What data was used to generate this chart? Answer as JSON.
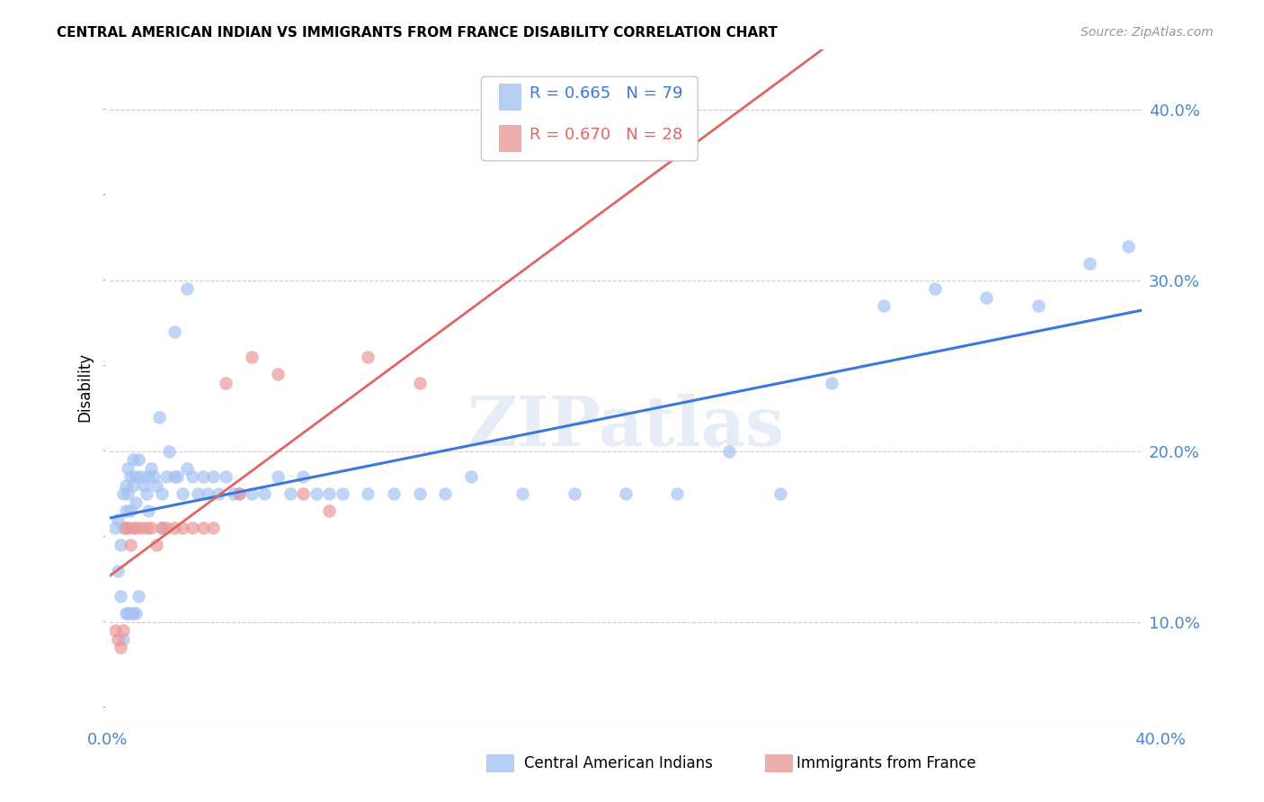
{
  "title": "CENTRAL AMERICAN INDIAN VS IMMIGRANTS FROM FRANCE DISABILITY CORRELATION CHART",
  "source": "Source: ZipAtlas.com",
  "ylabel": "Disability",
  "xlim": [
    0.0,
    0.4
  ],
  "ylim": [
    0.04,
    0.435
  ],
  "legend1_R": "0.665",
  "legend1_N": "79",
  "legend2_R": "0.670",
  "legend2_N": "28",
  "blue_color": "#a4c2f4",
  "pink_color": "#ea9999",
  "blue_line_color": "#3c78d8",
  "pink_line_color": "#e06666",
  "pink_dashed_color": "#cccccc",
  "axis_tick_color": "#4a86c8",
  "grid_color": "#cccccc",
  "watermark": "ZIPatlas",
  "blue_points_x": [
    0.002,
    0.003,
    0.004,
    0.005,
    0.005,
    0.006,
    0.006,
    0.007,
    0.007,
    0.008,
    0.008,
    0.009,
    0.009,
    0.01,
    0.01,
    0.011,
    0.012,
    0.013,
    0.014,
    0.015,
    0.016,
    0.017,
    0.018,
    0.019,
    0.02,
    0.022,
    0.023,
    0.025,
    0.026,
    0.028,
    0.03,
    0.032,
    0.034,
    0.036,
    0.038,
    0.04,
    0.042,
    0.045,
    0.048,
    0.05,
    0.055,
    0.06,
    0.065,
    0.07,
    0.075,
    0.08,
    0.085,
    0.09,
    0.1,
    0.11,
    0.12,
    0.13,
    0.14,
    0.16,
    0.18,
    0.2,
    0.22,
    0.24,
    0.26,
    0.28,
    0.3,
    0.32,
    0.34,
    0.36,
    0.38,
    0.395,
    0.003,
    0.004,
    0.005,
    0.006,
    0.007,
    0.008,
    0.009,
    0.01,
    0.011,
    0.015,
    0.02,
    0.025,
    0.03
  ],
  "blue_points_y": [
    0.155,
    0.16,
    0.145,
    0.155,
    0.175,
    0.165,
    0.18,
    0.175,
    0.19,
    0.165,
    0.185,
    0.18,
    0.195,
    0.17,
    0.185,
    0.195,
    0.185,
    0.18,
    0.175,
    0.185,
    0.19,
    0.185,
    0.18,
    0.22,
    0.175,
    0.185,
    0.2,
    0.185,
    0.185,
    0.175,
    0.19,
    0.185,
    0.175,
    0.185,
    0.175,
    0.185,
    0.175,
    0.185,
    0.175,
    0.175,
    0.175,
    0.175,
    0.185,
    0.175,
    0.185,
    0.175,
    0.175,
    0.175,
    0.175,
    0.175,
    0.175,
    0.175,
    0.185,
    0.175,
    0.175,
    0.175,
    0.175,
    0.2,
    0.175,
    0.24,
    0.285,
    0.295,
    0.29,
    0.285,
    0.31,
    0.32,
    0.13,
    0.115,
    0.09,
    0.105,
    0.105,
    0.105,
    0.105,
    0.105,
    0.115,
    0.165,
    0.155,
    0.27,
    0.295
  ],
  "pink_points_x": [
    0.002,
    0.003,
    0.004,
    0.005,
    0.006,
    0.007,
    0.008,
    0.009,
    0.01,
    0.012,
    0.014,
    0.016,
    0.018,
    0.02,
    0.022,
    0.025,
    0.028,
    0.032,
    0.036,
    0.04,
    0.045,
    0.05,
    0.055,
    0.065,
    0.075,
    0.085,
    0.1,
    0.12
  ],
  "pink_points_y": [
    0.095,
    0.09,
    0.085,
    0.095,
    0.155,
    0.155,
    0.145,
    0.155,
    0.155,
    0.155,
    0.155,
    0.155,
    0.145,
    0.155,
    0.155,
    0.155,
    0.155,
    0.155,
    0.155,
    0.155,
    0.24,
    0.175,
    0.255,
    0.245,
    0.175,
    0.165,
    0.255,
    0.24
  ]
}
